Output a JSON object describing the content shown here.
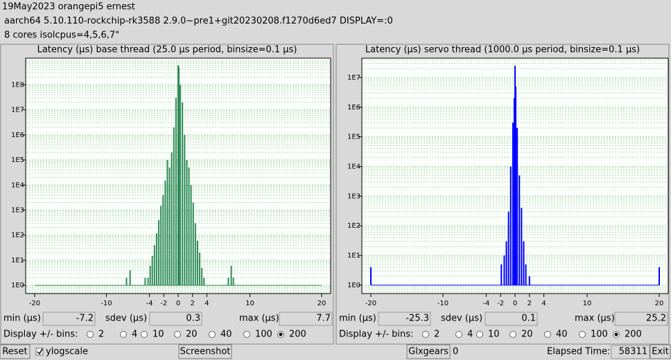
{
  "header": {
    "lines": [
      "19May2023 orangepi5 ernest",
      "aarch64  5.10.110-rockchip-rk3588  2.9.0~pre1+git20230208.f1270d6ed7  DISPLAY=:0",
      "8 cores  isolcpus=4,5,6,7\""
    ]
  },
  "chart_data": [
    {
      "type": "bar",
      "title": "Latency (µs) base thread (25.0 µs period, binsize=0.1 µs)",
      "color": "#2e8b57",
      "log_y": true,
      "grid": true,
      "x": [
        -7.2,
        -6.7,
        -6.3,
        -5.8,
        -5.2,
        -4.6,
        -4.2,
        -3.9,
        -3.6,
        -3.3,
        -3.0,
        -2.7,
        -2.4,
        -2.1,
        -1.8,
        -1.5,
        -1.2,
        -0.9,
        -0.6,
        -0.3,
        0.0,
        0.1,
        0.3,
        0.6,
        0.9,
        1.2,
        1.5,
        1.8,
        2.1,
        2.4,
        2.7,
        3.0,
        3.3,
        3.6,
        6.6,
        7.0,
        7.4,
        7.7
      ],
      "values": [
        2,
        4,
        1,
        1,
        1,
        2,
        2,
        6,
        15,
        40,
        120,
        400,
        1500,
        4000,
        15000,
        100000,
        50000,
        200000,
        2000000,
        30000000,
        600000000,
        500000000,
        100000000,
        20000000,
        1000000,
        100000,
        50000,
        10000,
        2000,
        300,
        60,
        20,
        5,
        2,
        1,
        2,
        6,
        2
      ],
      "xlim": [
        -20,
        20
      ],
      "xticks": [
        -20,
        -10,
        -4,
        -2,
        0,
        2,
        4,
        10,
        20
      ],
      "ylim": [
        0.47,
        1150000000
      ],
      "yticks": [
        {
          "value": 1,
          "label": "1E0"
        },
        {
          "value": 10,
          "label": "1E1"
        },
        {
          "value": 100,
          "label": "1E2"
        },
        {
          "value": 1000,
          "label": "1E3"
        },
        {
          "value": 10000,
          "label": "1E4"
        },
        {
          "value": 100000,
          "label": "1E5"
        },
        {
          "value": 1000000,
          "label": "1E6"
        },
        {
          "value": 10000000,
          "label": "1E7"
        },
        {
          "value": 100000000,
          "label": "1E8"
        }
      ]
    },
    {
      "type": "bar",
      "title": "Latency (µs) servo thread (1000.0 µs period, binsize=0.1 µs)",
      "color": "#0000ff",
      "log_y": true,
      "grid": true,
      "x": [
        -20,
        -1.9,
        -1.5,
        -1.2,
        -0.9,
        -0.6,
        -0.3,
        -0.1,
        0.0,
        0.1,
        0.3,
        0.6,
        0.9,
        1.2,
        1.5,
        2.0,
        20
      ],
      "values": [
        4,
        5,
        10,
        30,
        300,
        10000,
        300000,
        2000000,
        25000000,
        5000000,
        200000,
        5000,
        400,
        30,
        5,
        2,
        4
      ],
      "xlim": [
        -20,
        20
      ],
      "xticks": [
        -20,
        -10,
        -4,
        -2,
        0,
        2,
        4,
        10,
        20
      ],
      "ylim": [
        0.52,
        45000000
      ],
      "yticks": [
        {
          "value": 1,
          "label": "1E0"
        },
        {
          "value": 10,
          "label": "1E1"
        },
        {
          "value": 100,
          "label": "1E2"
        },
        {
          "value": 1000,
          "label": "1E3"
        },
        {
          "value": 10000,
          "label": "1E4"
        },
        {
          "value": 100000,
          "label": "1E5"
        },
        {
          "value": 1000000,
          "label": "1E6"
        },
        {
          "value": 10000000,
          "label": "1E7"
        }
      ]
    }
  ],
  "panels": [
    {
      "min_label": "min (µs)",
      "min": -7.2,
      "sdev_label": "sdev (µs)",
      "sdev": 0.3,
      "max_label": "max (µs)",
      "max": 7.7,
      "bins_label": "Display +/- bins:",
      "bins": [
        2,
        4,
        10,
        20,
        40,
        100,
        200
      ],
      "selected_bin": 200
    },
    {
      "min_label": "min (µs)",
      "min": -25.3,
      "sdev_label": "sdev (µs)",
      "sdev": 0.1,
      "max_label": "max (µs)",
      "max": 25.2,
      "bins_label": "Display +/- bins:",
      "bins": [
        2,
        4,
        10,
        20,
        40,
        100,
        200
      ],
      "selected_bin": 200
    }
  ],
  "controls": {
    "reset": "Reset",
    "ylogscale": "ylogscale",
    "ylogscale_checked": true,
    "screenshot": "Screenshot",
    "glxgears": "Glxgears",
    "glxgears_count": 0,
    "elapsed_label": "Elapsed Time:",
    "elapsed": 58311,
    "exit": "Exit"
  }
}
